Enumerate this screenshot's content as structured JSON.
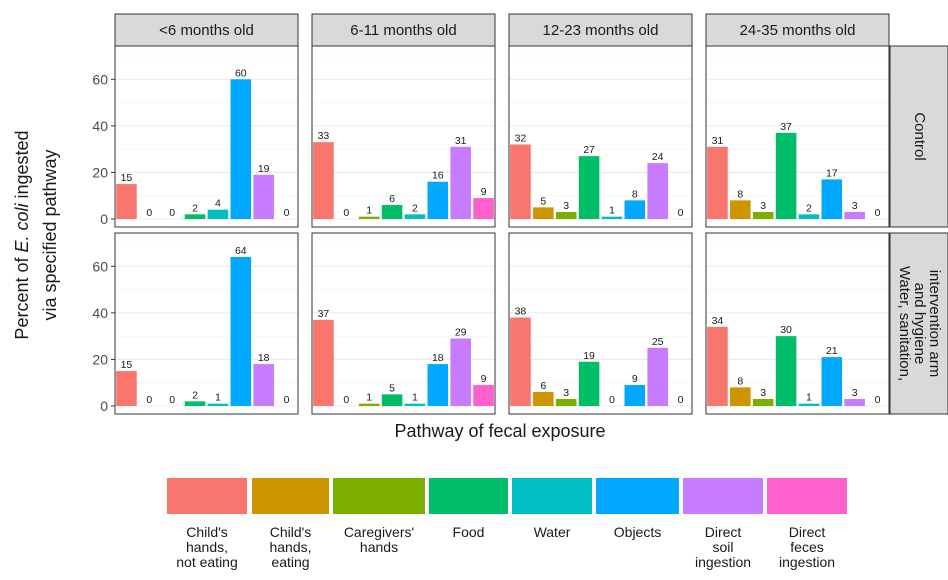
{
  "chart_data": {
    "type": "bar",
    "ylabel_prefix": "Percent of ",
    "ylabel_italic": "E. coli",
    "ylabel_suffix": " ingested",
    "ylabel_line2": "via specified pathway",
    "xlabel": "Pathway of fecal exposure",
    "ylim": [
      0,
      70
    ],
    "yticks": [
      0,
      20,
      40,
      60
    ],
    "grid": true,
    "legend_position": "bottom",
    "columns": [
      "<6 months old",
      "6-11 months old",
      "12-23 months old",
      "24-35 months old"
    ],
    "rows": [
      {
        "label_lines": [
          "Control"
        ]
      },
      {
        "label_lines": [
          "Water, sanitation,",
          "and hygiene",
          "intervention arm"
        ]
      }
    ],
    "categories": [
      {
        "label_lines": [
          "Child's",
          "hands,",
          "not eating"
        ],
        "color": "#F8766D"
      },
      {
        "label_lines": [
          "Child's",
          "hands,",
          "eating"
        ],
        "color": "#CD9600"
      },
      {
        "label_lines": [
          "Caregivers'",
          "hands"
        ],
        "color": "#7CAE00"
      },
      {
        "label_lines": [
          "Food"
        ],
        "color": "#00BE67"
      },
      {
        "label_lines": [
          "Water"
        ],
        "color": "#00BFC4"
      },
      {
        "label_lines": [
          "Objects"
        ],
        "color": "#00A9FF"
      },
      {
        "label_lines": [
          "Direct",
          "soil",
          "ingestion"
        ],
        "color": "#C77CFF"
      },
      {
        "label_lines": [
          "Direct",
          "feces",
          "ingestion"
        ],
        "color": "#FF61CC"
      }
    ],
    "values": [
      [
        [
          15,
          0,
          0,
          2,
          4,
          60,
          19,
          0
        ],
        [
          33,
          0,
          1,
          6,
          2,
          16,
          31,
          9
        ],
        [
          32,
          5,
          3,
          27,
          1,
          8,
          24,
          0
        ],
        [
          31,
          8,
          3,
          37,
          2,
          17,
          3,
          0
        ]
      ],
      [
        [
          15,
          0,
          0,
          2,
          1,
          64,
          18,
          0
        ],
        [
          37,
          0,
          1,
          5,
          1,
          18,
          29,
          9
        ],
        [
          38,
          6,
          3,
          19,
          0,
          9,
          25,
          0
        ],
        [
          34,
          8,
          3,
          30,
          1,
          21,
          3,
          0
        ]
      ]
    ]
  }
}
